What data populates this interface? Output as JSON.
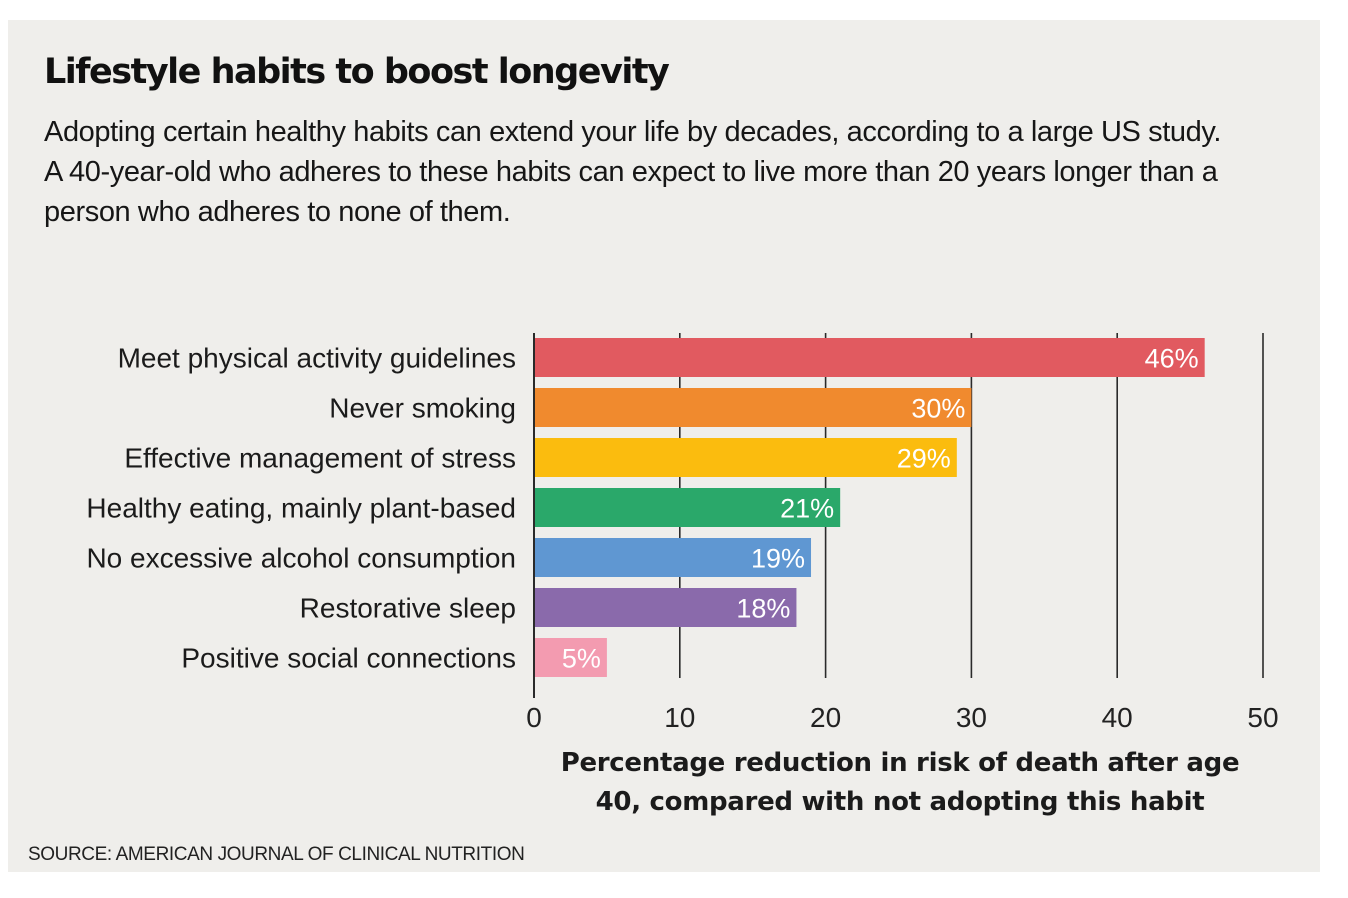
{
  "chart_data": {
    "type": "bar",
    "orientation": "horizontal",
    "title": "Lifestyle habits to boost longevity",
    "subtitle": "Adopting certain healthy habits can extend your life by decades, according to a large US study. A 40-year-old who adheres to these habits can expect to live more than 20 years longer than a person who adheres to none of them.",
    "categories": [
      "Meet physical activity guidelines",
      "Never smoking",
      "Effective management of stress",
      "Healthy eating, mainly plant-based",
      "No excessive alcohol consumption",
      "Restorative sleep",
      "Positive social connections"
    ],
    "values": [
      46,
      30,
      29,
      21,
      19,
      18,
      5
    ],
    "value_labels": [
      "46%",
      "30%",
      "29%",
      "21%",
      "19%",
      "18%",
      "5%"
    ],
    "colors": [
      "#e15a60",
      "#f08a2e",
      "#fbbc0e",
      "#2aa86a",
      "#5f97d2",
      "#8a6aab",
      "#f39bb0"
    ],
    "xlabel": "Percentage reduction in risk of death after age 40, compared with not adopting this habit",
    "xlim": [
      0,
      50
    ],
    "xticks": [
      0,
      10,
      20,
      30,
      40,
      50
    ],
    "xtick_labels": [
      "0",
      "10",
      "20",
      "30",
      "40",
      "50"
    ],
    "grid": "vertical",
    "source": "SOURCE: AMERICAN JOURNAL OF CLINICAL NUTRITION"
  }
}
